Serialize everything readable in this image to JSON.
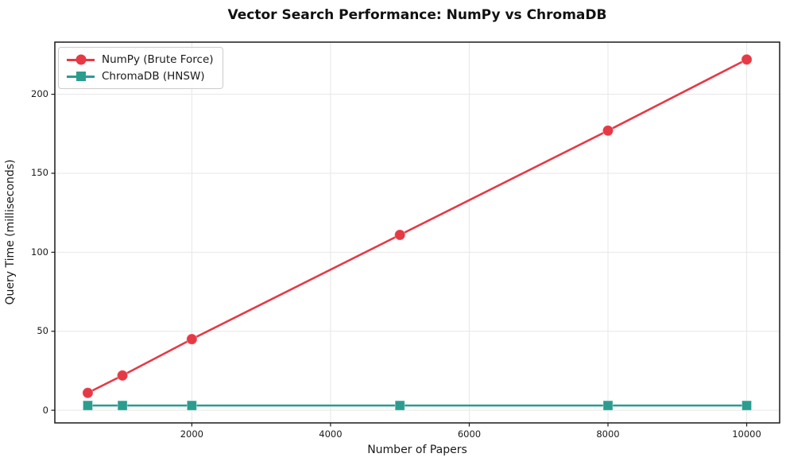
{
  "chart_data": {
    "type": "line",
    "title": "Vector Search Performance: NumPy vs ChromaDB",
    "xlabel": "Number of Papers",
    "ylabel": "Query Time (milliseconds)",
    "x": [
      500,
      1000,
      2000,
      5000,
      8000,
      10000
    ],
    "series": [
      {
        "name": "NumPy (Brute Force)",
        "color": "#e63946",
        "marker": "circle",
        "values": [
          11,
          22,
          45,
          111,
          177,
          222
        ]
      },
      {
        "name": "ChromaDB (HNSW)",
        "color": "#2a9d8f",
        "marker": "square",
        "values": [
          3,
          3,
          3,
          3,
          3,
          3
        ]
      }
    ],
    "xticks": [
      2000,
      4000,
      6000,
      8000,
      10000
    ],
    "yticks": [
      0,
      50,
      100,
      150,
      200
    ],
    "xlim": [
      25,
      10475
    ],
    "ylim": [
      -8,
      233
    ],
    "grid": true,
    "grid_color": "#e7e7e7",
    "spine_color": "#1a1a1a",
    "legend_position": "upper left"
  }
}
